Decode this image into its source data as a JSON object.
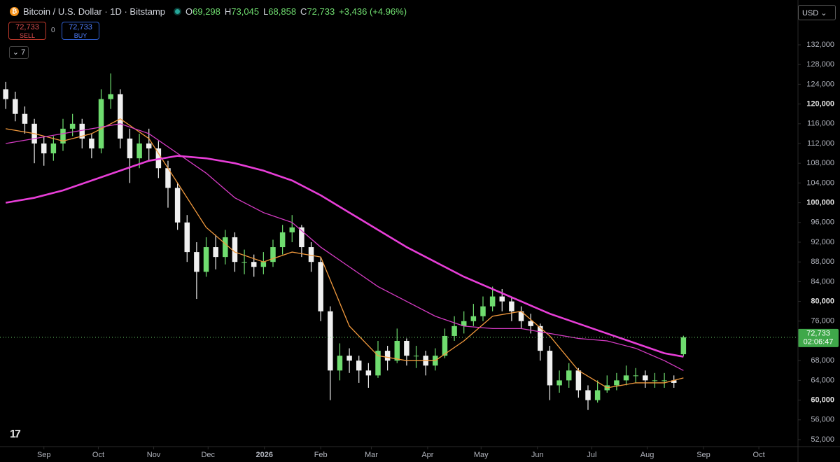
{
  "header": {
    "symbol": "Bitcoin / U.S. Dollar · 1D · Bitstamp",
    "ohlc": [
      {
        "key": "O",
        "value": "69,298"
      },
      {
        "key": "H",
        "value": "73,045"
      },
      {
        "key": "L",
        "value": "68,858"
      },
      {
        "key": "C",
        "value": "72,733"
      }
    ],
    "change": "+3,436 (+4.96%)"
  },
  "trade": {
    "sell_price": "72,733",
    "sell_label": "SELL",
    "spread": "0",
    "buy_price": "72,733",
    "buy_label": "BUY"
  },
  "indicators_count": "7",
  "currency": "USD",
  "chart_data": {
    "type": "candlestick",
    "up_color": "#6fdc6f",
    "down_color": "#f0f0f0",
    "open": [
      123000,
      121000,
      118000,
      116000,
      112000,
      110000,
      112000,
      115000,
      116000,
      113000,
      111000,
      121000,
      122000,
      113000,
      109000,
      112000,
      111000,
      107000,
      103000,
      96000,
      90000,
      86000,
      91000,
      89000,
      93000,
      88000,
      88000,
      87000,
      88000,
      91000,
      94000,
      95000,
      91000,
      88000,
      78000,
      66000,
      69000,
      68000,
      66000,
      65000,
      70000,
      68000,
      72000,
      69000,
      69000,
      67000,
      69000,
      73000,
      75000,
      76000,
      77000,
      79000,
      81000,
      80000,
      78000,
      76000,
      75000,
      70000,
      63000,
      64000,
      66000,
      62000,
      60000,
      62000,
      63000,
      64000,
      65000,
      65000,
      64000,
      64000,
      64000,
      69298
    ],
    "high": [
      124500,
      122500,
      119500,
      117000,
      113500,
      113500,
      117000,
      118000,
      117000,
      114000,
      123000,
      126200,
      123000,
      115000,
      114000,
      115000,
      112500,
      108500,
      104000,
      97500,
      92000,
      93000,
      93500,
      94500,
      94000,
      90500,
      89500,
      90000,
      92500,
      95500,
      97500,
      95500,
      92000,
      89000,
      79000,
      71500,
      70500,
      69000,
      67500,
      72000,
      71000,
      74500,
      72500,
      71000,
      70000,
      70500,
      74500,
      77000,
      78000,
      79500,
      81000,
      83000,
      82500,
      81000,
      79000,
      77500,
      75500,
      71000,
      66000,
      67500,
      66500,
      63000,
      64000,
      65000,
      65500,
      67000,
      66500,
      66000,
      65500,
      65500,
      65000,
      73045
    ],
    "low": [
      119000,
      116500,
      114000,
      108000,
      107500,
      108500,
      110500,
      113500,
      111000,
      109000,
      110000,
      119000,
      111000,
      104000,
      107000,
      108500,
      105000,
      99000,
      94500,
      88000,
      80500,
      85000,
      86500,
      87500,
      86000,
      85500,
      85000,
      85500,
      87000,
      89500,
      92000,
      89000,
      86000,
      76000,
      60000,
      64000,
      65500,
      63500,
      62500,
      64500,
      66000,
      67500,
      67000,
      66500,
      65000,
      66000,
      68500,
      72000,
      73500,
      75000,
      76000,
      78000,
      78000,
      76000,
      74500,
      73500,
      68000,
      60000,
      61500,
      62500,
      60500,
      58000,
      59500,
      61500,
      62000,
      63000,
      63500,
      62500,
      62500,
      62500,
      62500,
      68858
    ],
    "close": [
      121000,
      118000,
      116000,
      112000,
      110000,
      112000,
      115000,
      116000,
      113000,
      111000,
      121000,
      122000,
      113000,
      109000,
      112000,
      111000,
      107000,
      103000,
      96000,
      90000,
      86000,
      91000,
      89000,
      93000,
      88000,
      88000,
      87000,
      88000,
      91000,
      94000,
      95000,
      91000,
      88000,
      78000,
      66000,
      69000,
      68000,
      66000,
      65000,
      70000,
      68000,
      72000,
      69000,
      69000,
      67000,
      69000,
      73000,
      75000,
      76000,
      77000,
      79000,
      81000,
      80000,
      78000,
      76000,
      75000,
      70000,
      63000,
      64000,
      66000,
      62000,
      60000,
      62000,
      63000,
      64000,
      65000,
      65000,
      64000,
      64000,
      64000,
      63500,
      72733
    ],
    "moving_averages": [
      {
        "color": "#f39a3d",
        "x": [
          0,
          3,
          6,
          9,
          12,
          15,
          18,
          21,
          24,
          27,
          30,
          33,
          36,
          39,
          42,
          45,
          48,
          51,
          54,
          57,
          60,
          63,
          66,
          69,
          71
        ],
        "values": [
          115000,
          114000,
          112500,
          114000,
          117000,
          113000,
          104000,
          95000,
          90000,
          88000,
          90000,
          89000,
          75000,
          69000,
          68000,
          68000,
          72000,
          77000,
          78000,
          73000,
          66000,
          62500,
          63500,
          63500,
          64500
        ]
      },
      {
        "color": "#d63bc4",
        "x": [
          0,
          3,
          6,
          9,
          12,
          15,
          18,
          21,
          24,
          27,
          30,
          33,
          36,
          39,
          42,
          45,
          48,
          51,
          54,
          57,
          60,
          63,
          66,
          69,
          71
        ],
        "values": [
          112000,
          113000,
          114000,
          115000,
          116000,
          114000,
          110000,
          106000,
          101000,
          98000,
          96000,
          91000,
          87000,
          83000,
          80000,
          77000,
          75000,
          74500,
          74500,
          73500,
          72500,
          72000,
          70500,
          68000,
          66000
        ]
      },
      {
        "color": "#e83ed8",
        "x": [
          0,
          3,
          6,
          9,
          12,
          15,
          18,
          21,
          24,
          27,
          30,
          33,
          36,
          39,
          42,
          45,
          48,
          51,
          54,
          57,
          60,
          63,
          66,
          69,
          71
        ],
        "values": [
          100000,
          101000,
          102500,
          104500,
          106500,
          108500,
          109500,
          109000,
          108000,
          106500,
          104500,
          101500,
          98000,
          94500,
          91000,
          88000,
          85000,
          82500,
          80000,
          77500,
          75500,
          73500,
          71500,
          69500,
          68800
        ]
      }
    ],
    "ylim": [
      50580,
      141080
    ],
    "yticks": [
      {
        "value": 52000,
        "label": "52,000"
      },
      {
        "value": 56000,
        "label": "56,000"
      },
      {
        "value": 60000,
        "label": "60,000"
      },
      {
        "value": 64000,
        "label": "64,000"
      },
      {
        "value": 68000,
        "label": "68,000"
      },
      {
        "value": 72000,
        "label": "72,000"
      },
      {
        "value": 76000,
        "label": "76,000"
      },
      {
        "value": 80000,
        "label": "80,000"
      },
      {
        "value": 84000,
        "label": "84,000"
      },
      {
        "value": 88000,
        "label": "88,000"
      },
      {
        "value": 92000,
        "label": "92,000"
      },
      {
        "value": 96000,
        "label": "96,000"
      },
      {
        "value": 100000,
        "label": "100,000"
      },
      {
        "value": 104000,
        "label": "104,000"
      },
      {
        "value": 108000,
        "label": "108,000"
      },
      {
        "value": 112000,
        "label": "112,000"
      },
      {
        "value": 116000,
        "label": "116,000"
      },
      {
        "value": 120000,
        "label": "120,000"
      },
      {
        "value": 124000,
        "label": "124,000"
      },
      {
        "value": 128000,
        "label": "128,000"
      },
      {
        "value": 132000,
        "label": "132,000"
      }
    ],
    "xlim": [
      -0.6,
      83
    ],
    "xticks": [
      {
        "value": 4.0,
        "label": "Sep"
      },
      {
        "value": 9.7,
        "label": "Oct"
      },
      {
        "value": 15.5,
        "label": "Nov"
      },
      {
        "value": 21.2,
        "label": "Dec"
      },
      {
        "value": 27.1,
        "label": "2026"
      },
      {
        "value": 33.0,
        "label": "Feb"
      },
      {
        "value": 38.3,
        "label": "Mar"
      },
      {
        "value": 44.2,
        "label": "Apr"
      },
      {
        "value": 49.8,
        "label": "May"
      },
      {
        "value": 55.7,
        "label": "Jun"
      },
      {
        "value": 61.4,
        "label": "Jul"
      },
      {
        "value": 67.2,
        "label": "Aug"
      },
      {
        "value": 73.1,
        "label": "Sep"
      },
      {
        "value": 78.9,
        "label": "Oct"
      }
    ],
    "last_price": {
      "value": 72733,
      "label": "72,733"
    },
    "countdown": "02:06:47"
  }
}
